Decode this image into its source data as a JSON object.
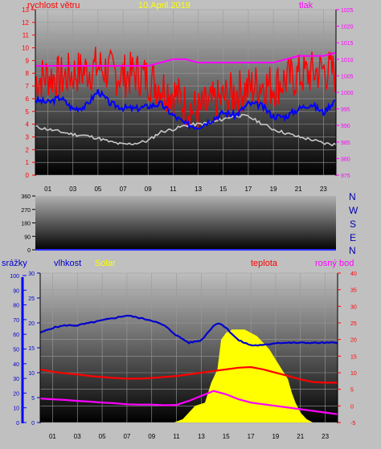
{
  "colors": {
    "wind": "#0000ff",
    "gust": "#ff0000",
    "temp_tl": "#c8c8c8",
    "pressure": "#ff00ff",
    "humidity": "#0000cc",
    "solar": "#ffff00",
    "dew": "#ff00ff",
    "rain": "#0000ff",
    "temperature": "#ff0000",
    "title": "#ffff00"
  },
  "header": {
    "wind_label": "rychlost větru",
    "date": "10.April.2019",
    "pressure_label": "tlak"
  },
  "middle": {
    "directions": [
      "N",
      "W",
      "S",
      "E",
      "N"
    ]
  },
  "bottom": {
    "rain_label": "srážky",
    "humidity_label": "vlhkost",
    "solar_label": "Solar",
    "temp_label": "teplota",
    "dew_label": "rosný bod"
  },
  "chart_data": [
    {
      "type": "line",
      "title": "10.April.2019",
      "xlabel": "",
      "ylabel": "rychlost větru",
      "xlim": [
        0,
        24
      ],
      "x_ticks": [
        "01",
        "03",
        "05",
        "07",
        "09",
        "11",
        "13",
        "15",
        "17",
        "19",
        "21",
        "23"
      ],
      "ylim": [
        0,
        13
      ],
      "y_ticks": [
        0,
        1,
        2,
        3,
        4,
        5,
        6,
        7,
        8,
        9,
        10,
        11,
        12,
        13
      ],
      "y2_label": "tlak",
      "y2lim": [
        975,
        1025
      ],
      "y2_ticks": [
        975,
        980,
        985,
        990,
        995,
        1000,
        1005,
        1010,
        1015,
        1020,
        1025
      ],
      "series": [
        {
          "name": "",
          "axis": "left",
          "color": "#ff0000",
          "x": [
            0,
            1,
            2,
            3,
            4,
            5,
            6,
            7,
            8,
            9,
            10,
            11,
            12,
            13,
            14,
            15,
            16,
            17,
            18,
            19,
            20,
            21,
            22,
            23,
            24
          ],
          "values": [
            7.5,
            7.8,
            7.6,
            8.0,
            8.2,
            8.5,
            8.1,
            7.8,
            8.0,
            7.6,
            7.0,
            6.5,
            5.5,
            5.0,
            5.5,
            6.0,
            6.5,
            6.8,
            7.2,
            7.0,
            7.5,
            7.8,
            8.0,
            8.3,
            8.0
          ]
        },
        {
          "name": "",
          "axis": "left",
          "color": "#0000ff",
          "x": [
            0,
            1,
            2,
            3,
            4,
            5,
            6,
            7,
            8,
            9,
            10,
            11,
            12,
            13,
            14,
            15,
            16,
            17,
            18,
            19,
            20,
            21,
            22,
            23,
            24
          ],
          "values": [
            5.9,
            5.7,
            6.1,
            5.2,
            5.4,
            6.6,
            5.6,
            5.3,
            5.2,
            5.4,
            5.6,
            4.7,
            4.0,
            3.8,
            4.3,
            4.9,
            4.7,
            5.6,
            5.5,
            4.6,
            4.6,
            5.2,
            5.6,
            4.9,
            6.0
          ]
        },
        {
          "name": "",
          "axis": "left",
          "color": "#c8c8c8",
          "x": [
            0,
            1,
            2,
            3,
            4,
            5,
            6,
            7,
            8,
            9,
            10,
            11,
            12,
            13,
            14,
            15,
            16,
            17,
            18,
            19,
            20,
            21,
            22,
            23,
            24
          ],
          "values": [
            3.8,
            3.6,
            3.4,
            3.2,
            3.1,
            2.9,
            2.6,
            2.4,
            2.5,
            2.7,
            3.4,
            3.6,
            3.9,
            4.0,
            4.1,
            4.4,
            4.7,
            4.6,
            4.1,
            3.6,
            3.3,
            3.0,
            2.8,
            2.5,
            2.4
          ]
        },
        {
          "name": "",
          "axis": "right",
          "color": "#ff00ff",
          "x": [
            0,
            1,
            2,
            3,
            4,
            5,
            6,
            7,
            8,
            9,
            10,
            11,
            12,
            13,
            14,
            15,
            16,
            17,
            18,
            19,
            20,
            21,
            22,
            23,
            24
          ],
          "values": [
            1008,
            1008,
            1008,
            1008,
            1008,
            1008,
            1008,
            1008,
            1008,
            1008,
            1009,
            1010,
            1010,
            1009,
            1009,
            1009,
            1009,
            1009,
            1009,
            1009,
            1010,
            1011,
            1011,
            1011,
            1012
          ]
        }
      ]
    },
    {
      "type": "scatter",
      "title": "",
      "xlabel": "",
      "ylabel": "",
      "xlim": [
        0,
        24
      ],
      "ylim": [
        0,
        360
      ],
      "y_ticks": [
        0,
        90,
        180,
        270,
        360
      ],
      "series": [
        {
          "name": "",
          "x": [],
          "values": []
        }
      ]
    },
    {
      "type": "line",
      "title": "",
      "xlabel": "",
      "xlim": [
        0,
        24
      ],
      "x_ticks": [
        "01",
        "03",
        "05",
        "07",
        "09",
        "11",
        "13",
        "15",
        "17",
        "19",
        "21",
        "23"
      ],
      "axes": {
        "rain": {
          "ticks": [
            0,
            10,
            20,
            30,
            40,
            50,
            60,
            70,
            80,
            90,
            100
          ],
          "lim": [
            0,
            100
          ]
        },
        "humidity": {
          "ticks": [
            0,
            5,
            10,
            15,
            20,
            25,
            30
          ],
          "lim": [
            0,
            30
          ]
        },
        "temperature": {
          "ticks": [
            -5,
            0,
            5,
            10,
            15,
            20,
            25,
            30,
            35,
            40
          ],
          "lim": [
            -5,
            40
          ]
        }
      },
      "series": [
        {
          "name": "vlhkost",
          "axis": "humidity",
          "color": "#0000cc",
          "x": [
            0,
            1,
            2,
            3,
            4,
            5,
            6,
            7,
            8,
            9,
            10,
            11,
            12,
            13,
            14,
            14.5,
            15,
            16,
            17,
            18,
            19,
            20,
            21,
            22,
            23,
            24
          ],
          "values": [
            18,
            19,
            19.5,
            19.5,
            20,
            20.5,
            21,
            21.5,
            21,
            20.5,
            19.5,
            17.5,
            16,
            16.5,
            19.5,
            20,
            19,
            16.5,
            15.5,
            15.5,
            16,
            16,
            16,
            16,
            16,
            16
          ]
        },
        {
          "name": "teplota",
          "axis": "temperature",
          "color": "#ff0000",
          "x": [
            0,
            1,
            2,
            3,
            4,
            5,
            6,
            7,
            8,
            9,
            10,
            11,
            12,
            13,
            14,
            15,
            16,
            17,
            18,
            19,
            20,
            21,
            22,
            23,
            24
          ],
          "values": [
            11,
            10.3,
            9.8,
            9.5,
            9.0,
            8.7,
            8.4,
            8.2,
            8.2,
            8.4,
            8.7,
            9.0,
            9.5,
            10.0,
            10.5,
            11.0,
            11.5,
            11.7,
            11.0,
            10.0,
            9.0,
            8.0,
            7.2,
            7.0,
            7.0
          ]
        },
        {
          "name": "rosný bod",
          "axis": "temperature",
          "color": "#ff00ff",
          "x": [
            0,
            1,
            2,
            3,
            4,
            5,
            6,
            7,
            8,
            9,
            10,
            11,
            12,
            13,
            14,
            15,
            16,
            17,
            18,
            19,
            20,
            21,
            22,
            23,
            24
          ],
          "values": [
            2.2,
            2.0,
            1.8,
            1.5,
            1.3,
            1.0,
            0.8,
            0.5,
            0.4,
            0.4,
            0.2,
            0.3,
            1.5,
            3.0,
            4.5,
            3.5,
            2.0,
            1.0,
            0.5,
            0,
            -0.5,
            -1.0,
            -1.5,
            -2.0,
            -2.5
          ]
        },
        {
          "name": "Solar",
          "axis": "temperature",
          "color": "#ffff00",
          "x": [
            10.8,
            11.5,
            12.5,
            13.3,
            13.8,
            14.3,
            14.6,
            15,
            15.5,
            16,
            16.5,
            17,
            17.5,
            18,
            18.5,
            19,
            19.5,
            20,
            20.3,
            20.6,
            21,
            21.5,
            22
          ],
          "values": [
            -5,
            -4,
            0,
            1,
            7,
            11,
            20,
            22,
            23,
            23,
            23,
            22,
            21,
            19,
            17,
            14,
            11,
            8,
            4,
            1,
            -2,
            -4,
            -5
          ]
        }
      ]
    }
  ]
}
